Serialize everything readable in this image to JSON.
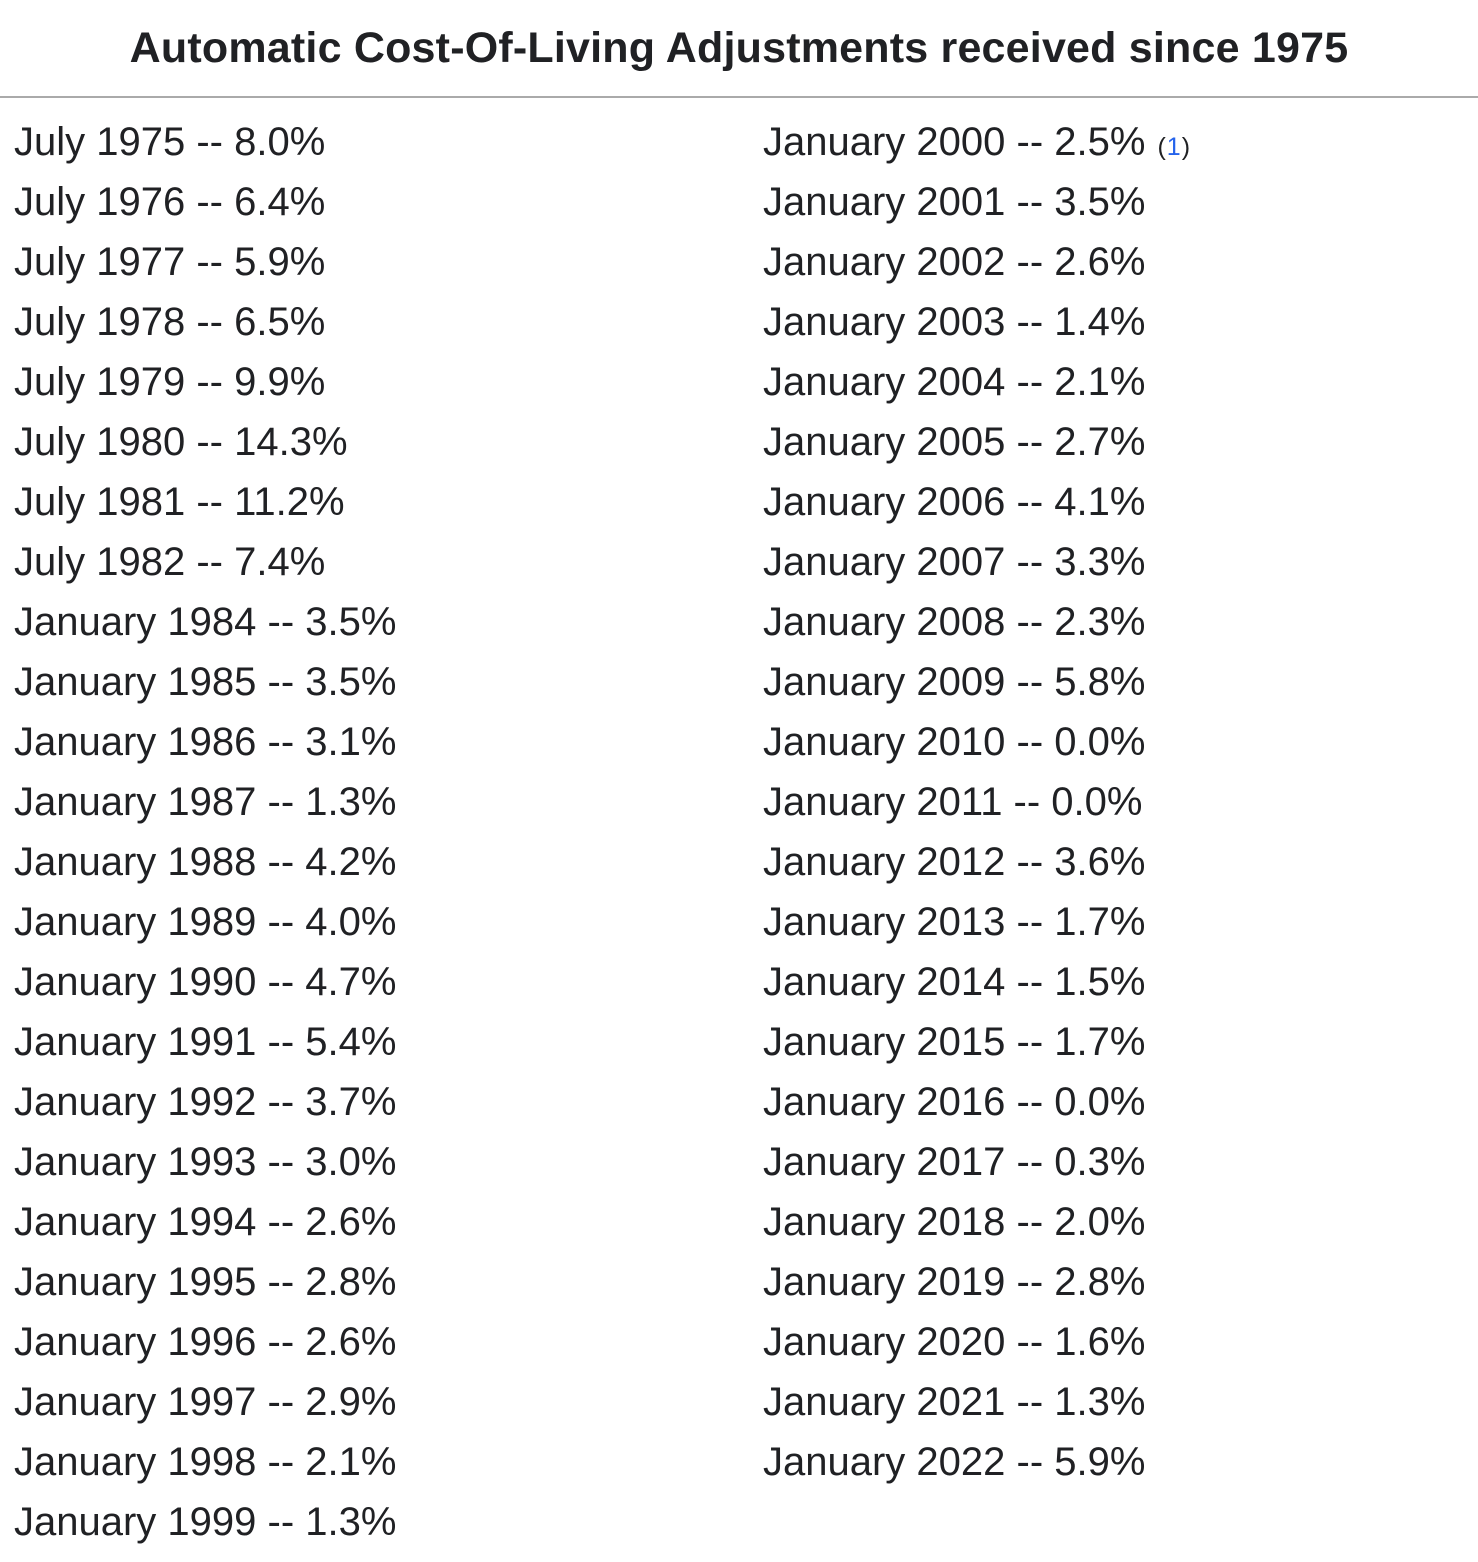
{
  "title": "Automatic Cost-Of-Living Adjustments received since 1975",
  "colors": {
    "text": "#202124",
    "link": "#2563eb",
    "divider": "#aaaaaa",
    "background": "#ffffff"
  },
  "footnote": {
    "prefix": "(",
    "link": "1",
    "suffix": ")"
  },
  "columns": {
    "left": [
      "July 1975 -- 8.0%",
      "July 1976 -- 6.4%",
      "July 1977 -- 5.9%",
      "July 1978 -- 6.5%",
      "July 1979 -- 9.9%",
      "July 1980 -- 14.3%",
      "July 1981 -- 11.2%",
      "July 1982 -- 7.4%",
      "January 1984 -- 3.5%",
      "January 1985 -- 3.5%",
      "January 1986 -- 3.1%",
      "January 1987 -- 1.3%",
      "January 1988 -- 4.2%",
      "January 1989 -- 4.0%",
      "January 1990 -- 4.7%",
      "January 1991 -- 5.4%",
      "January 1992 -- 3.7%",
      "January 1993 -- 3.0%",
      "January 1994 -- 2.6%",
      "January 1995 -- 2.8%",
      "January 1996 -- 2.6%",
      "January 1997 -- 2.9%",
      "January 1998 -- 2.1%",
      "January 1999 -- 1.3%"
    ],
    "right": [
      "January 2000 -- 2.5%",
      "January 2001 -- 3.5%",
      "January 2002 -- 2.6%",
      "January 2003 -- 1.4%",
      "January 2004 -- 2.1%",
      "January 2005 -- 2.7%",
      "January 2006 -- 4.1%",
      "January 2007 -- 3.3%",
      "January 2008 -- 2.3%",
      "January 2009 -- 5.8%",
      "January 2010 -- 0.0%",
      "January 2011 -- 0.0%",
      "January 2012 -- 3.6%",
      "January 2013 -- 1.7%",
      "January 2014 -- 1.5%",
      "January 2015 -- 1.7%",
      "January 2016 -- 0.0%",
      "January 2017 -- 0.3%",
      "January 2018 -- 2.0%",
      "January 2019 -- 2.8%",
      "January 2020 -- 1.6%",
      "January 2021 -- 1.3%",
      "January 2022 -- 5.9%"
    ]
  }
}
